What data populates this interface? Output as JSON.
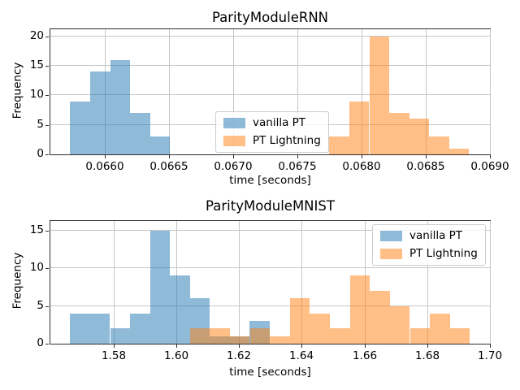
{
  "figure": {
    "background": "#ffffff"
  },
  "palette": {
    "vanilla_pt": "#1f77b4",
    "pt_lightning": "#ff7f0e",
    "bar_alpha": 0.5,
    "grid_color": "#c6c6c6",
    "spine_color": "#2e2e2e",
    "text_color": "#000000",
    "legend_border": "#cccccc"
  },
  "chart_data": [
    {
      "type": "bar",
      "chart_kind": "histogram",
      "title": "ParityModuleRNN",
      "xlabel": "time [seconds]",
      "ylabel": "Frequency",
      "grid": true,
      "legend_position": "center",
      "xlim": [
        0.065579,
        0.069
      ],
      "ylim": [
        0,
        21.2
      ],
      "xticks": [
        0.066,
        0.0665,
        0.067,
        0.0675,
        0.068,
        0.0685,
        0.069
      ],
      "xtick_labels": [
        "0.0660",
        "0.0665",
        "0.0670",
        "0.0675",
        "0.0680",
        "0.0685",
        "0.0690"
      ],
      "yticks": [
        0,
        5,
        10,
        15,
        20
      ],
      "ytick_labels": [
        "0",
        "5",
        "10",
        "15",
        "20"
      ],
      "series": [
        {
          "name": "vanilla PT",
          "color_key": "vanilla_pt",
          "bin_start": 0.065733,
          "bin_width": 0.0001556,
          "counts": [
            9,
            14,
            16,
            7,
            3
          ]
        },
        {
          "name": "PT Lightning",
          "color_key": "pt_lightning",
          "bin_start": 0.06775,
          "bin_width": 0.0001554,
          "counts": [
            3,
            9,
            20,
            7,
            6,
            3,
            1
          ]
        }
      ]
    },
    {
      "type": "bar",
      "chart_kind": "histogram",
      "title": "ParityModuleMNIST",
      "xlabel": "time [seconds]",
      "ylabel": "Frequency",
      "grid": true,
      "legend_position": "upper right",
      "xlim": [
        1.55984,
        1.7
      ],
      "ylim": [
        0,
        16.26
      ],
      "xticks": [
        1.58,
        1.6,
        1.62,
        1.64,
        1.66,
        1.68,
        1.7
      ],
      "xtick_labels": [
        "1.58",
        "1.60",
        "1.62",
        "1.64",
        "1.66",
        "1.68",
        "1.70"
      ],
      "yticks": [
        0,
        5,
        10,
        15
      ],
      "ytick_labels": [
        "0",
        "5",
        "10",
        "15"
      ],
      "series": [
        {
          "name": "vanilla PT",
          "color_key": "vanilla_pt",
          "bin_start": 1.56614,
          "bin_width": 0.006365,
          "counts": [
            4,
            4,
            2,
            4,
            15,
            9,
            6,
            1,
            1,
            3
          ]
        },
        {
          "name": "PT Lightning",
          "color_key": "pt_lightning",
          "bin_start": 1.6043,
          "bin_width": 0.006379,
          "counts": [
            2,
            2,
            1,
            2,
            1,
            6,
            4,
            2,
            9,
            7,
            5,
            2,
            4,
            2
          ]
        }
      ]
    }
  ]
}
